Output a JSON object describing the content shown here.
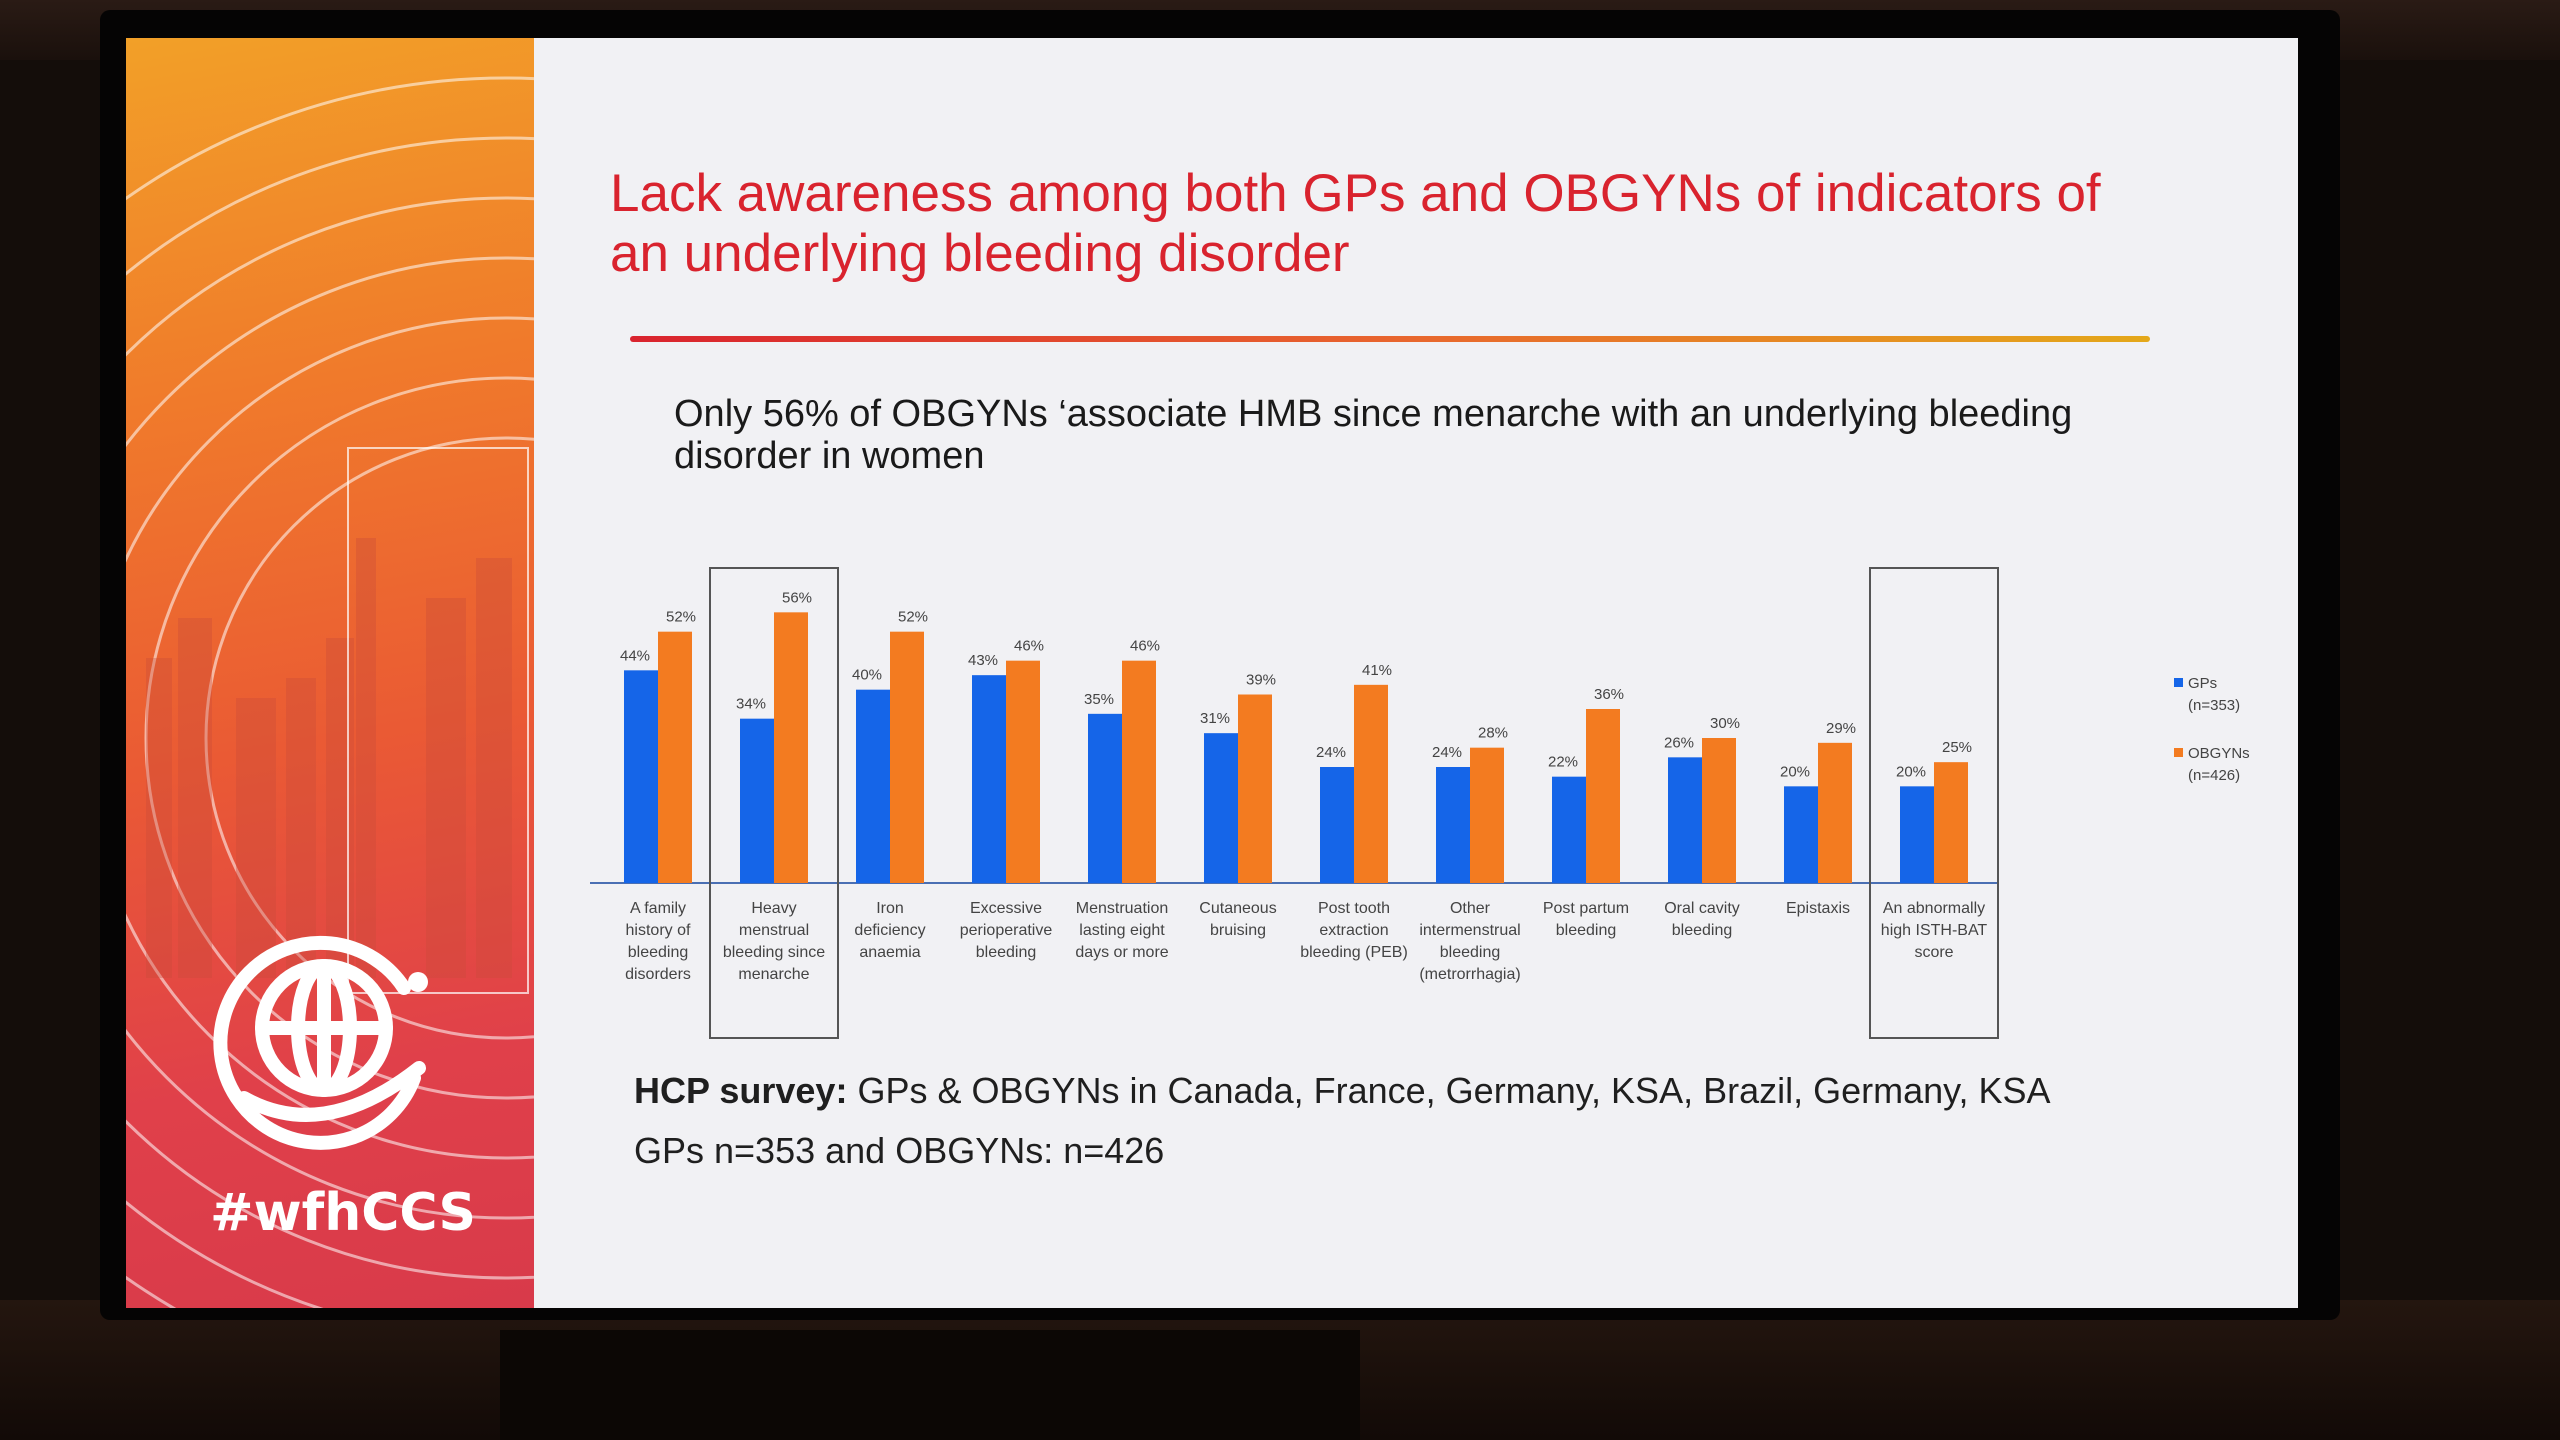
{
  "slide": {
    "title": "Lack awareness among both GPs and OBGYNs of indicators of an underlying bleeding disorder",
    "subtitle": "Only 56% of OBGYNs ‘associate HMB since menarche with an underlying bleeding disorder in women",
    "hashtag": "#wfhCCS",
    "footer_label": "HCP survey:",
    "footer_text": " GPs & OBGYNs in Canada, France, Germany, KSA, Brazil, Germany, KSA",
    "footer_line2": "GPs n=353  and OBGYNs: n=426"
  },
  "colors": {
    "gps": "#1565e8",
    "obgyns": "#f37b20",
    "title": "#d9232e"
  },
  "chart_data": {
    "type": "bar",
    "categories": [
      [
        "A family",
        "history of",
        "bleeding",
        "disorders"
      ],
      [
        "Heavy",
        "menstrual",
        "bleeding since",
        "menarche"
      ],
      [
        "Iron",
        "deficiency",
        "anaemia"
      ],
      [
        "Excessive",
        "perioperative",
        "bleeding"
      ],
      [
        "Menstruation",
        "lasting eight",
        "days or more"
      ],
      [
        "Cutaneous",
        "bruising"
      ],
      [
        "Post tooth",
        "extraction",
        "bleeding (PEB)"
      ],
      [
        "Other",
        "intermenstrual",
        "bleeding",
        "(metrorrhagia)"
      ],
      [
        "Post partum",
        "bleeding"
      ],
      [
        "Oral cavity",
        "bleeding"
      ],
      [
        "Epistaxis"
      ],
      [
        "An abnormally",
        "high ISTH-BAT",
        "score"
      ]
    ],
    "series": [
      {
        "name": "GPs",
        "legend_sub": "(n=353)",
        "values": [
          44,
          34,
          40,
          43,
          35,
          31,
          24,
          24,
          22,
          26,
          20,
          20
        ],
        "labels": [
          "44%",
          "34%",
          "40%",
          "43%",
          "35%",
          "31%",
          "24%",
          "24%",
          "22%",
          "26%",
          "20%",
          "20%"
        ]
      },
      {
        "name": "OBGYNs",
        "legend_sub": "(n=426)",
        "values": [
          52,
          56,
          52,
          46,
          46,
          39,
          41,
          28,
          36,
          30,
          29,
          25
        ],
        "labels": [
          "52%",
          "56%",
          "52%",
          "46%",
          "46%",
          "39%",
          "41%",
          "28%",
          "36%",
          "30%",
          "29%",
          "25%"
        ]
      }
    ],
    "highlighted_categories": [
      1,
      11
    ],
    "ylim": [
      0,
      60
    ],
    "grid": false,
    "legend_position": "right"
  }
}
